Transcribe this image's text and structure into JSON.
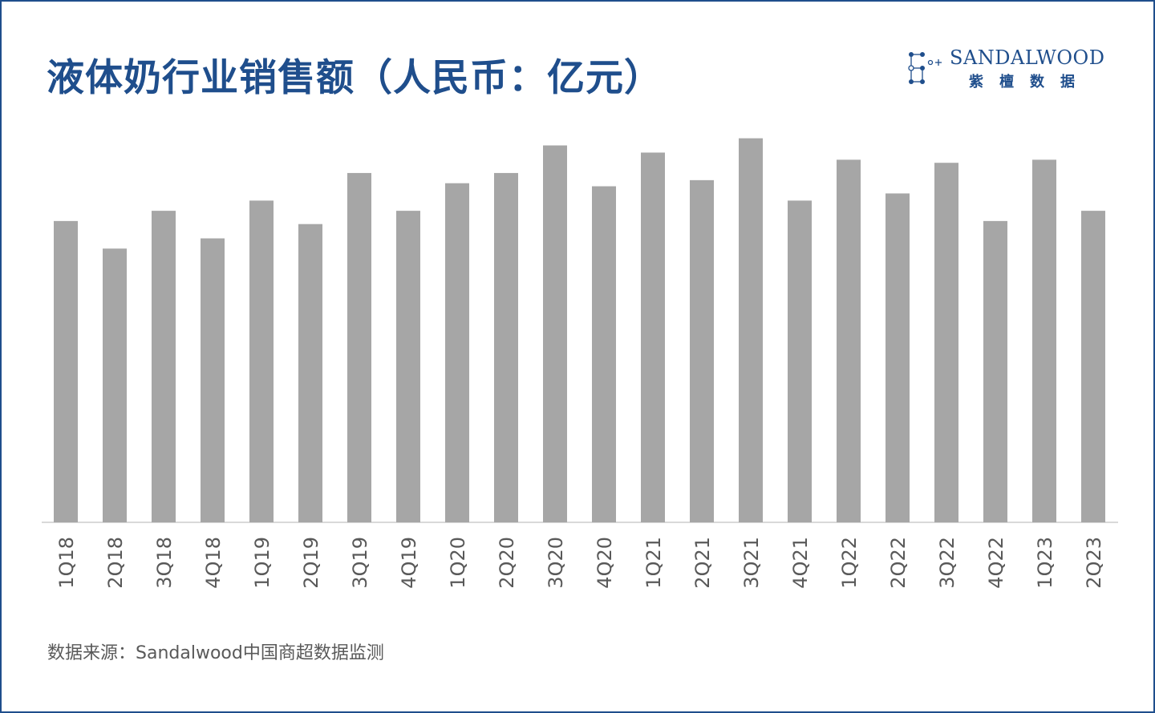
{
  "header": {
    "title": "液体奶行业销售额（人民币：亿元）"
  },
  "logo": {
    "name_en": "SANDALWOOD",
    "name_cn": "紫檀数据",
    "icon": "sandalwood-logo-mark",
    "color": "#1f4e8c"
  },
  "footer": {
    "source": "数据来源：Sandalwood中国商超数据监测"
  },
  "chart_data": {
    "type": "bar",
    "title": "液体奶行业销售额（人民币：亿元）",
    "xlabel": "",
    "ylabel": "",
    "categories": [
      "1Q18",
      "2Q18",
      "3Q18",
      "4Q18",
      "1Q19",
      "2Q19",
      "3Q19",
      "4Q19",
      "1Q20",
      "2Q20",
      "3Q20",
      "4Q20",
      "1Q21",
      "2Q21",
      "3Q21",
      "4Q21",
      "1Q22",
      "2Q22",
      "3Q22",
      "4Q22",
      "1Q23",
      "2Q23"
    ],
    "values": [
      295,
      268,
      305,
      278,
      315,
      292,
      342,
      305,
      332,
      342,
      369,
      329,
      362,
      335,
      376,
      315,
      355,
      322,
      352,
      295,
      355,
      305
    ],
    "ylim": [
      0,
      400
    ],
    "grid": false,
    "legend": "none",
    "bar_color": "#a6a6a6",
    "axis_color": "#d9d9d9"
  }
}
